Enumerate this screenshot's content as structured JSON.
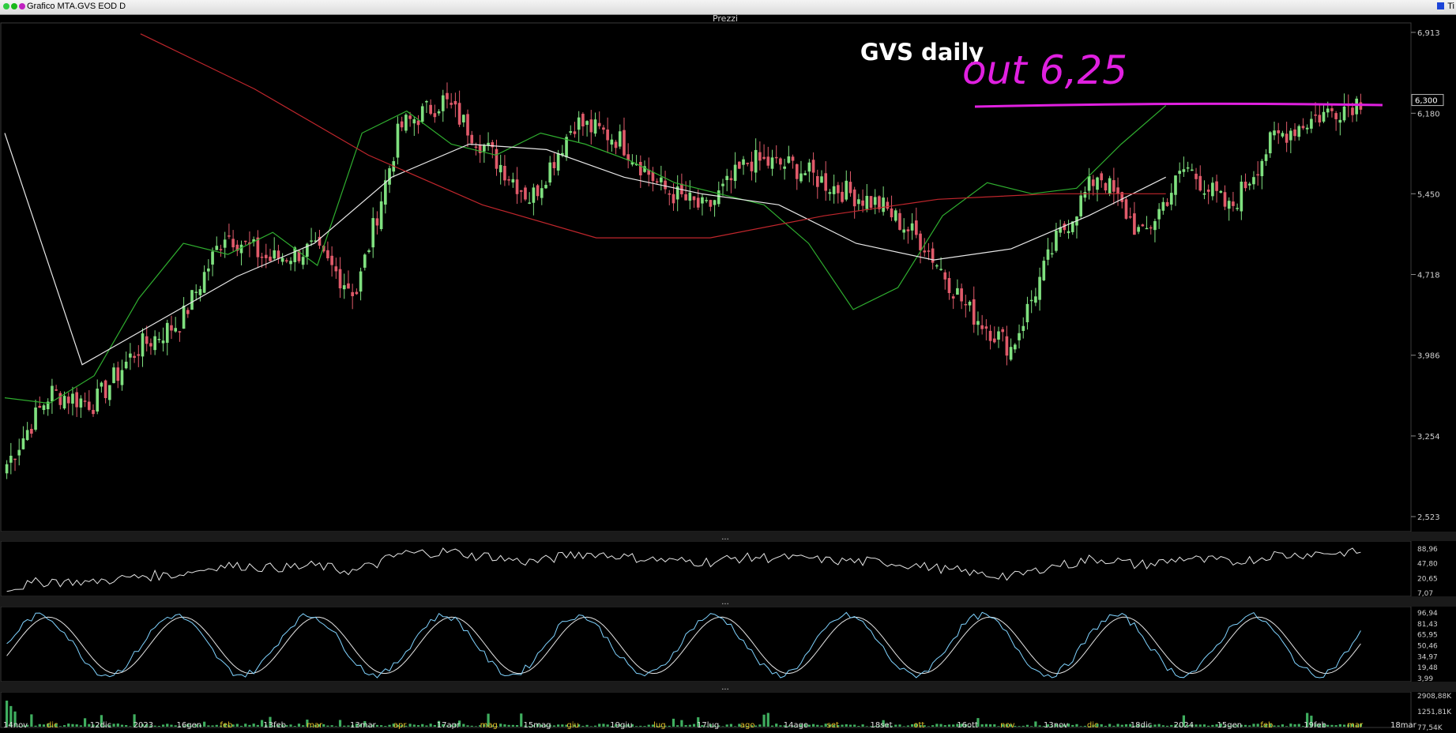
{
  "window": {
    "title": "Grafico MTA.GVS EOD D",
    "right_label": "Ti"
  },
  "panels": {
    "price_title": "Prezzi",
    "separator": "..."
  },
  "annotations": {
    "chart_title": "GVS daily",
    "handwritten": "out 6,25",
    "color": "#e020e0"
  },
  "colors": {
    "up_candle": "#7fe07f",
    "down_candle": "#e05a6a",
    "ma_short": "#2fae2f",
    "ma_medium": "#e8e8e8",
    "ma_long": "#c0262c",
    "oscillator_line": "#e6e6e6",
    "stoch_k": "#7fd3ff",
    "stoch_d": "#e6e6e6",
    "volume": "#3fae5f",
    "date_labels": "#e7c12a",
    "axis_text": "#cfcfcf"
  },
  "chart_data": [
    {
      "type": "candlestick",
      "title": "GVS daily",
      "yticks": [
        "6,913",
        "6,180",
        "5,450",
        "4,718",
        "3,986",
        "3,254",
        "2,523"
      ],
      "ylim": [
        2.523,
        6.913
      ],
      "last_price_label": "6,300",
      "resistance_level": 6.25,
      "xticks": [
        "14nov",
        "dic",
        "12dic",
        "2023",
        "16gen",
        "feb",
        "13feb",
        "mar",
        "13mar",
        "apr",
        "17apr",
        "mag",
        "15mag",
        "giu",
        "19giu",
        "lug",
        "17lug",
        "ago",
        "14ago",
        "set",
        "18set",
        "ott",
        "16ott",
        "nov",
        "13nov",
        "dic",
        "18dic",
        "2024",
        "15gen",
        "feb",
        "19feb",
        "mar",
        "18mar"
      ],
      "close_path": [
        {
          "x": "14nov",
          "y": 3.0
        },
        {
          "x": "dic",
          "y": 3.65
        },
        {
          "x": "12dic",
          "y": 3.55
        },
        {
          "x": "2023",
          "y": 4.05
        },
        {
          "x": "16gen",
          "y": 4.3
        },
        {
          "x": "feb",
          "y": 5.1
        },
        {
          "x": "13feb",
          "y": 4.85
        },
        {
          "x": "mar",
          "y": 4.95
        },
        {
          "x": "13mar",
          "y": 4.55
        },
        {
          "x": "apr",
          "y": 6.05
        },
        {
          "x": "17apr",
          "y": 6.3
        },
        {
          "x": "mag",
          "y": 5.85
        },
        {
          "x": "15mag",
          "y": 5.4
        },
        {
          "x": "giu",
          "y": 6.1
        },
        {
          "x": "19giu",
          "y": 5.95
        },
        {
          "x": "lug",
          "y": 5.5
        },
        {
          "x": "17lug",
          "y": 5.3
        },
        {
          "x": "ago",
          "y": 5.75
        },
        {
          "x": "14ago",
          "y": 5.7
        },
        {
          "x": "set",
          "y": 5.5
        },
        {
          "x": "18set",
          "y": 5.35
        },
        {
          "x": "ott",
          "y": 5.0
        },
        {
          "x": "16ott",
          "y": 4.4
        },
        {
          "x": "nov",
          "y": 4.05
        },
        {
          "x": "13nov",
          "y": 5.0
        },
        {
          "x": "dic",
          "y": 5.65
        },
        {
          "x": "18dic",
          "y": 5.05
        },
        {
          "x": "2024",
          "y": 5.7
        },
        {
          "x": "15gen",
          "y": 5.3
        },
        {
          "x": "feb",
          "y": 5.95
        },
        {
          "x": "19feb",
          "y": 6.15
        },
        {
          "x": "mar",
          "y": 6.3
        }
      ],
      "moving_averages": [
        {
          "color": "green",
          "path": [
            3.6,
            3.55,
            3.8,
            4.5,
            5.0,
            4.9,
            5.1,
            4.8,
            6.0,
            6.2,
            5.9,
            5.8,
            6.0,
            5.9,
            5.75,
            5.55,
            5.45,
            5.35,
            5.0,
            4.4,
            4.6,
            5.25,
            5.55,
            5.45,
            5.5,
            5.9,
            6.25
          ]
        },
        {
          "color": "white",
          "path": [
            6.0,
            3.9,
            4.3,
            4.7,
            5.0,
            5.6,
            5.9,
            5.85,
            5.6,
            5.45,
            5.35,
            5.0,
            4.85,
            4.95,
            5.25,
            5.6
          ]
        },
        {
          "color": "red",
          "path": [
            6.9,
            6.4,
            5.8,
            5.35,
            5.05,
            5.05,
            5.25,
            5.4,
            5.45,
            5.45
          ]
        }
      ]
    },
    {
      "type": "line",
      "name": "oscillator",
      "yticks": [
        "88,96",
        "47,80",
        "20,65",
        "7,07"
      ],
      "ylim": [
        7.07,
        88.96
      ]
    },
    {
      "type": "line",
      "name": "stochastic",
      "yticks": [
        "96,94",
        "81,43",
        "65,95",
        "50,46",
        "34,97",
        "19,48",
        "3,99"
      ],
      "ylim": [
        3.99,
        96.94
      ]
    },
    {
      "type": "bar",
      "name": "volume",
      "yticks": [
        "2908,88K",
        "1251,81K",
        "77,54K"
      ],
      "ylim": [
        77.54,
        2908.88
      ]
    }
  ]
}
